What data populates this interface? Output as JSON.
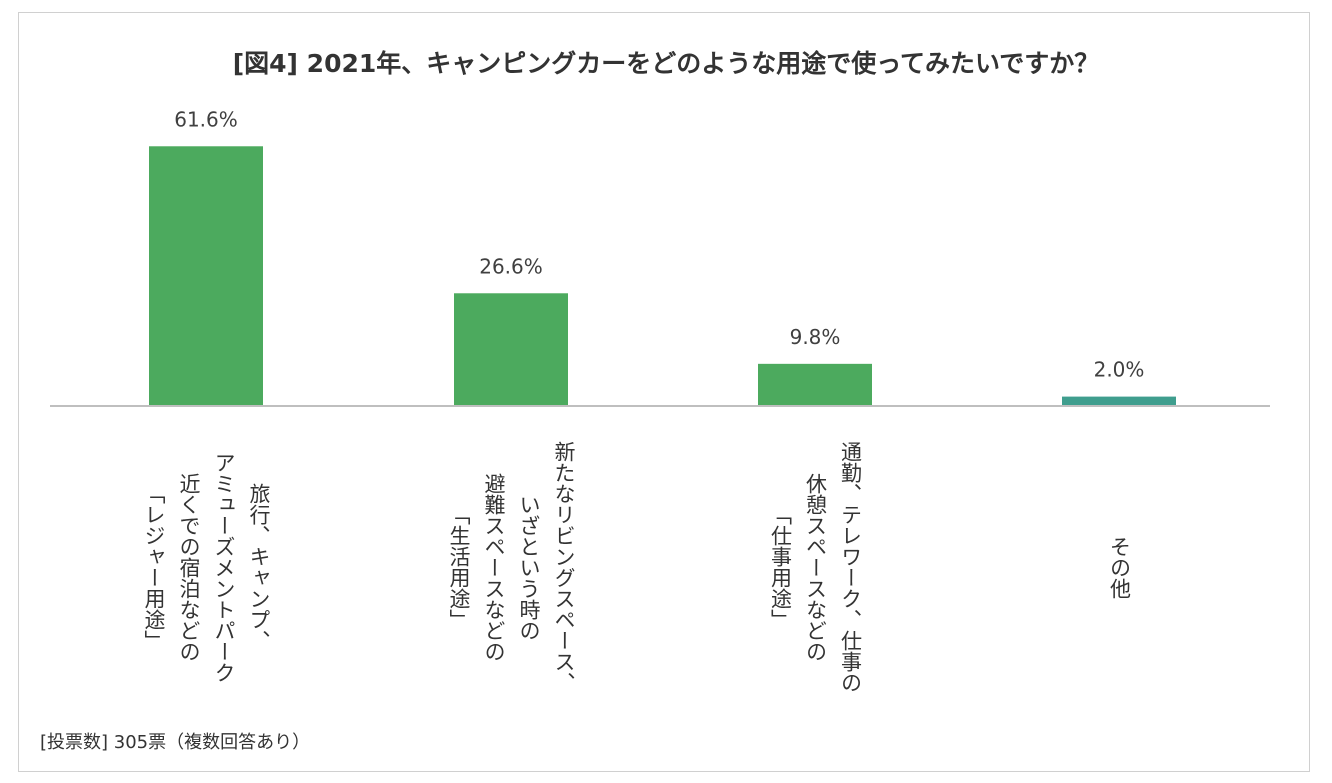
{
  "chart_data": {
    "type": "bar",
    "title": "[図4] 2021年、キャンピングカーをどのような用途で使ってみたいですか？",
    "categories": [
      [
        "旅行、キャンプ、",
        "アミューズメントパーク",
        "近くでの宿泊などの",
        "「レジャー用途」"
      ],
      [
        "新たなリビングスペース、",
        "いざという時の",
        "避難スペースなどの",
        "「生活用途」"
      ],
      [
        "通勤、テレワーク、仕事の",
        "休憩スペースなどの",
        "「仕事用途」"
      ],
      [
        "その他"
      ]
    ],
    "values": [
      61.6,
      26.6,
      9.8,
      2.0
    ],
    "data_labels": [
      "61.6%",
      "26.6%",
      "9.8%",
      "2.0%"
    ],
    "unit": "%",
    "ylim": [
      0,
      65
    ],
    "grid": false,
    "bar_colors": [
      "#4caa5e",
      "#4caa5e",
      "#4caa5e",
      "#3f9e8e"
    ],
    "footnote": "[投票数] 305票（複数回答あり）"
  }
}
